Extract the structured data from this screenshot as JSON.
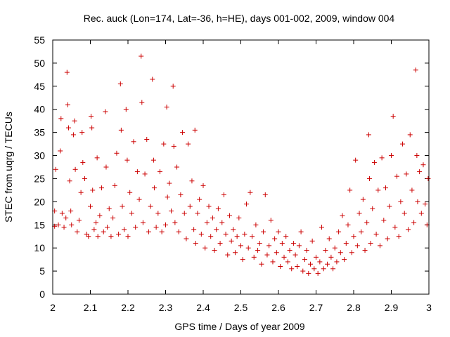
{
  "chart_data": {
    "type": "scatter",
    "title": "Rec. auck (Lon=174, Lat=-36, h=HE), days 001-002, 2009, window 004",
    "xlabel": "GPS time / Days of year 2009",
    "ylabel": "STEC from uqrg / TECUs",
    "xlim": [
      2,
      3
    ],
    "ylim": [
      0,
      55
    ],
    "xticks": [
      2,
      2.1,
      2.2,
      2.3,
      2.4,
      2.5,
      2.6,
      2.7,
      2.8,
      2.9,
      3
    ],
    "xtick_labels": [
      "2",
      "2.1",
      "2.2",
      "2.3",
      "2.4",
      "2.5",
      "2.6",
      "2.7",
      "2.8",
      "2.9",
      "3"
    ],
    "yticks": [
      0,
      5,
      10,
      15,
      20,
      25,
      30,
      35,
      40,
      45,
      50,
      55
    ],
    "ytick_labels": [
      "0",
      "5",
      "10",
      "15",
      "20",
      "25",
      "30",
      "35",
      "40",
      "45",
      "50",
      "55"
    ],
    "marker": "+",
    "series": [
      {
        "name": "STEC",
        "color": "#cc0000",
        "points": [
          [
            2.005,
            14.7
          ],
          [
            2.005,
            18.0
          ],
          [
            2.008,
            27.0
          ],
          [
            2.015,
            15.0
          ],
          [
            2.02,
            31.0
          ],
          [
            2.022,
            38.0
          ],
          [
            2.025,
            17.5
          ],
          [
            2.03,
            14.5
          ],
          [
            2.035,
            16.5
          ],
          [
            2.038,
            48.0
          ],
          [
            2.04,
            41.0
          ],
          [
            2.042,
            36.0
          ],
          [
            2.045,
            24.5
          ],
          [
            2.048,
            18.0
          ],
          [
            2.05,
            15.0
          ],
          [
            2.055,
            34.5
          ],
          [
            2.058,
            37.5
          ],
          [
            2.06,
            27.0
          ],
          [
            2.065,
            13.5
          ],
          [
            2.07,
            16.0
          ],
          [
            2.075,
            22.0
          ],
          [
            2.078,
            35.0
          ],
          [
            2.08,
            28.5
          ],
          [
            2.085,
            25.0
          ],
          [
            2.09,
            13.0
          ],
          [
            2.095,
            12.5
          ],
          [
            2.1,
            19.0
          ],
          [
            2.102,
            38.5
          ],
          [
            2.104,
            36.0
          ],
          [
            2.106,
            22.5
          ],
          [
            2.11,
            14.0
          ],
          [
            2.115,
            15.5
          ],
          [
            2.118,
            29.5
          ],
          [
            2.12,
            12.5
          ],
          [
            2.125,
            17.0
          ],
          [
            2.13,
            23.0
          ],
          [
            2.135,
            13.5
          ],
          [
            2.14,
            39.5
          ],
          [
            2.142,
            27.5
          ],
          [
            2.145,
            14.5
          ],
          [
            2.15,
            18.5
          ],
          [
            2.155,
            12.5
          ],
          [
            2.16,
            16.5
          ],
          [
            2.165,
            23.5
          ],
          [
            2.17,
            30.5
          ],
          [
            2.175,
            13.0
          ],
          [
            2.18,
            45.5
          ],
          [
            2.182,
            35.5
          ],
          [
            2.185,
            19.0
          ],
          [
            2.19,
            14.0
          ],
          [
            2.195,
            40.0
          ],
          [
            2.198,
            29.0
          ],
          [
            2.2,
            12.5
          ],
          [
            2.205,
            22.0
          ],
          [
            2.21,
            17.5
          ],
          [
            2.215,
            33.0
          ],
          [
            2.22,
            14.5
          ],
          [
            2.225,
            26.5
          ],
          [
            2.23,
            20.5
          ],
          [
            2.235,
            51.5
          ],
          [
            2.237,
            41.5
          ],
          [
            2.24,
            15.5
          ],
          [
            2.245,
            26.0
          ],
          [
            2.25,
            33.5
          ],
          [
            2.255,
            13.5
          ],
          [
            2.26,
            19.0
          ],
          [
            2.265,
            46.5
          ],
          [
            2.268,
            29.0
          ],
          [
            2.27,
            23.0
          ],
          [
            2.275,
            14.5
          ],
          [
            2.28,
            17.5
          ],
          [
            2.285,
            26.5
          ],
          [
            2.29,
            13.5
          ],
          [
            2.295,
            32.5
          ],
          [
            2.3,
            15.0
          ],
          [
            2.303,
            40.5
          ],
          [
            2.305,
            21.0
          ],
          [
            2.31,
            24.0
          ],
          [
            2.315,
            18.0
          ],
          [
            2.32,
            45.0
          ],
          [
            2.322,
            32.0
          ],
          [
            2.325,
            15.5
          ],
          [
            2.33,
            27.5
          ],
          [
            2.335,
            13.5
          ],
          [
            2.34,
            21.5
          ],
          [
            2.345,
            35.0
          ],
          [
            2.35,
            17.5
          ],
          [
            2.355,
            12.0
          ],
          [
            2.36,
            32.5
          ],
          [
            2.365,
            19.0
          ],
          [
            2.37,
            24.5
          ],
          [
            2.375,
            14.0
          ],
          [
            2.378,
            35.5
          ],
          [
            2.38,
            11.0
          ],
          [
            2.385,
            17.5
          ],
          [
            2.39,
            20.5
          ],
          [
            2.395,
            13.0
          ],
          [
            2.4,
            23.5
          ],
          [
            2.405,
            10.0
          ],
          [
            2.41,
            15.5
          ],
          [
            2.415,
            19.0
          ],
          [
            2.42,
            12.5
          ],
          [
            2.425,
            16.5
          ],
          [
            2.43,
            9.5
          ],
          [
            2.435,
            14.0
          ],
          [
            2.44,
            18.5
          ],
          [
            2.445,
            11.0
          ],
          [
            2.45,
            15.5
          ],
          [
            2.455,
            21.5
          ],
          [
            2.46,
            13.0
          ],
          [
            2.465,
            8.5
          ],
          [
            2.47,
            17.0
          ],
          [
            2.475,
            11.5
          ],
          [
            2.48,
            14.0
          ],
          [
            2.485,
            9.0
          ],
          [
            2.49,
            12.5
          ],
          [
            2.495,
            16.5
          ],
          [
            2.5,
            10.5
          ],
          [
            2.505,
            7.5
          ],
          [
            2.51,
            13.0
          ],
          [
            2.515,
            19.5
          ],
          [
            2.52,
            10.0
          ],
          [
            2.525,
            22.0
          ],
          [
            2.53,
            12.5
          ],
          [
            2.535,
            8.0
          ],
          [
            2.54,
            15.0
          ],
          [
            2.545,
            9.5
          ],
          [
            2.55,
            11.0
          ],
          [
            2.555,
            6.5
          ],
          [
            2.56,
            13.5
          ],
          [
            2.565,
            21.5
          ],
          [
            2.57,
            8.5
          ],
          [
            2.575,
            10.5
          ],
          [
            2.58,
            16.0
          ],
          [
            2.585,
            7.0
          ],
          [
            2.59,
            12.0
          ],
          [
            2.595,
            9.0
          ],
          [
            2.6,
            13.5
          ],
          [
            2.605,
            6.0
          ],
          [
            2.61,
            11.0
          ],
          [
            2.615,
            8.0
          ],
          [
            2.62,
            12.5
          ],
          [
            2.625,
            7.0
          ],
          [
            2.63,
            9.5
          ],
          [
            2.635,
            5.5
          ],
          [
            2.64,
            11.0
          ],
          [
            2.645,
            8.5
          ],
          [
            2.65,
            6.0
          ],
          [
            2.655,
            10.5
          ],
          [
            2.66,
            13.5
          ],
          [
            2.665,
            5.0
          ],
          [
            2.67,
            7.5
          ],
          [
            2.675,
            9.5
          ],
          [
            2.68,
            4.5
          ],
          [
            2.685,
            6.5
          ],
          [
            2.69,
            11.5
          ],
          [
            2.695,
            5.5
          ],
          [
            2.7,
            8.0
          ],
          [
            2.705,
            4.5
          ],
          [
            2.71,
            7.0
          ],
          [
            2.715,
            14.5
          ],
          [
            2.72,
            5.5
          ],
          [
            2.725,
            9.5
          ],
          [
            2.73,
            6.5
          ],
          [
            2.735,
            12.0
          ],
          [
            2.74,
            8.0
          ],
          [
            2.745,
            5.5
          ],
          [
            2.75,
            10.0
          ],
          [
            2.755,
            7.0
          ],
          [
            2.76,
            13.5
          ],
          [
            2.765,
            9.0
          ],
          [
            2.77,
            17.0
          ],
          [
            2.775,
            7.5
          ],
          [
            2.78,
            11.0
          ],
          [
            2.785,
            15.0
          ],
          [
            2.79,
            22.5
          ],
          [
            2.795,
            9.0
          ],
          [
            2.8,
            12.5
          ],
          [
            2.805,
            29.0
          ],
          [
            2.81,
            10.5
          ],
          [
            2.815,
            17.5
          ],
          [
            2.82,
            13.5
          ],
          [
            2.825,
            20.5
          ],
          [
            2.83,
            9.5
          ],
          [
            2.835,
            15.5
          ],
          [
            2.84,
            34.5
          ],
          [
            2.842,
            25.0
          ],
          [
            2.845,
            11.0
          ],
          [
            2.85,
            18.5
          ],
          [
            2.855,
            28.5
          ],
          [
            2.86,
            13.0
          ],
          [
            2.865,
            22.5
          ],
          [
            2.87,
            10.5
          ],
          [
            2.875,
            29.5
          ],
          [
            2.88,
            16.0
          ],
          [
            2.885,
            23.0
          ],
          [
            2.89,
            12.0
          ],
          [
            2.895,
            19.0
          ],
          [
            2.9,
            30.0
          ],
          [
            2.905,
            38.5
          ],
          [
            2.91,
            14.5
          ],
          [
            2.915,
            25.5
          ],
          [
            2.92,
            12.5
          ],
          [
            2.925,
            20.0
          ],
          [
            2.93,
            32.5
          ],
          [
            2.935,
            17.5
          ],
          [
            2.94,
            26.0
          ],
          [
            2.945,
            14.0
          ],
          [
            2.95,
            34.5
          ],
          [
            2.955,
            22.5
          ],
          [
            2.96,
            15.5
          ],
          [
            2.965,
            48.5
          ],
          [
            2.968,
            30.0
          ],
          [
            2.97,
            20.0
          ],
          [
            2.975,
            26.5
          ],
          [
            2.98,
            17.5
          ],
          [
            2.985,
            28.0
          ],
          [
            2.99,
            19.5
          ],
          [
            2.995,
            15.0
          ],
          [
            2.998,
            25.0
          ]
        ]
      }
    ]
  }
}
